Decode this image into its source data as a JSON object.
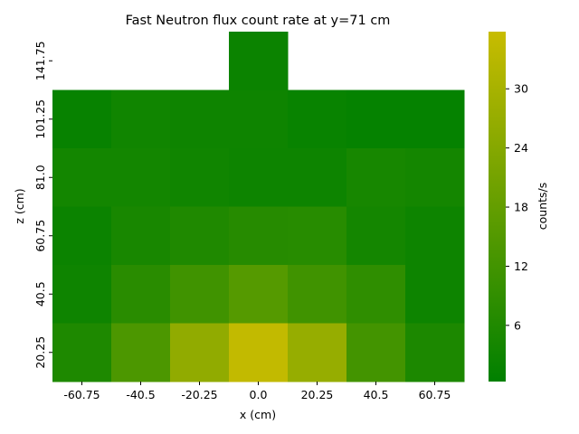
{
  "chart_data": {
    "type": "heatmap",
    "title": "Fast Neutron flux count rate at y=71 cm",
    "xlabel": "x (cm)",
    "ylabel": "z (cm)",
    "x_categories": [
      "-60.75",
      "-40.5",
      "-20.25",
      "0.0",
      "20.25",
      "40.5",
      "60.75"
    ],
    "y_categories": [
      "141.75",
      "101.25",
      "81.0",
      "60.75",
      "40.5",
      "20.25"
    ],
    "values": [
      [
        null,
        null,
        null,
        2.2,
        null,
        null,
        null
      ],
      [
        1.6,
        3.2,
        2.8,
        2.8,
        1.8,
        1.2,
        1.2
      ],
      [
        3.6,
        3.6,
        3.2,
        2.6,
        2.6,
        4.4,
        3.8
      ],
      [
        2.2,
        4.6,
        5.8,
        7.0,
        7.2,
        3.8,
        2.6
      ],
      [
        2.8,
        7.6,
        11.6,
        15.4,
        11.6,
        8.6,
        2.6
      ],
      [
        5.6,
        13.8,
        26.0,
        34.8,
        27.0,
        12.2,
        5.2
      ]
    ],
    "colorbar": {
      "label": "counts/s",
      "ticks": [
        6,
        12,
        18,
        24,
        30
      ],
      "range": [
        0.3,
        35.8
      ],
      "colors": [
        "#008000",
        "#c8bc00"
      ]
    },
    "grid": false,
    "legend": "colorbar-right"
  }
}
